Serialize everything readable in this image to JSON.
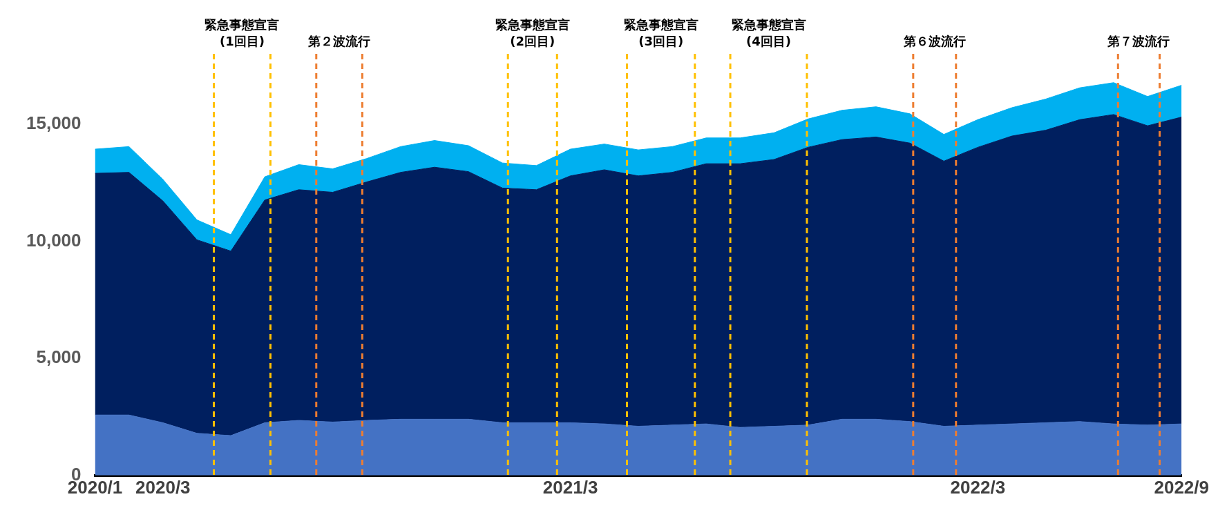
{
  "chart_data": {
    "type": "area",
    "stacked": true,
    "x": [
      "2020-01",
      "2020-02",
      "2020-03",
      "2020-04",
      "2020-05",
      "2020-06",
      "2020-07",
      "2020-08",
      "2020-09",
      "2020-10",
      "2020-11",
      "2020-12",
      "2021-01",
      "2021-02",
      "2021-03",
      "2021-04",
      "2021-05",
      "2021-06",
      "2021-07",
      "2021-08",
      "2021-09",
      "2021-10",
      "2021-11",
      "2021-12",
      "2022-01",
      "2022-02",
      "2022-03",
      "2022-04",
      "2022-05",
      "2022-06",
      "2022-07",
      "2022-08",
      "2022-09"
    ],
    "series": [
      {
        "color": "#4472c4",
        "values": [
          2580,
          2580,
          2250,
          1800,
          1700,
          2250,
          2350,
          2280,
          2350,
          2400,
          2400,
          2400,
          2250,
          2250,
          2250,
          2200,
          2100,
          2150,
          2200,
          2050,
          2100,
          2150,
          2400,
          2400,
          2300,
          2100,
          2150,
          2200,
          2250,
          2300,
          2200,
          2150,
          2200
        ]
      },
      {
        "color": "#001f5f",
        "values": [
          10320,
          10360,
          9470,
          8260,
          7880,
          9510,
          9850,
          9810,
          10180,
          10540,
          10760,
          10570,
          10020,
          9950,
          10540,
          10850,
          10690,
          10790,
          11110,
          11260,
          11390,
          11860,
          11940,
          12050,
          11890,
          11320,
          11860,
          12290,
          12490,
          12890,
          13210,
          12780,
          13100
        ]
      },
      {
        "color": "#00b0f0",
        "values": [
          1030,
          1100,
          920,
          850,
          700,
          990,
          1070,
          1000,
          1000,
          1100,
          1140,
          1110,
          1070,
          1030,
          1140,
          1100,
          1110,
          1100,
          1100,
          1100,
          1140,
          1210,
          1250,
          1290,
          1250,
          1140,
          1180,
          1210,
          1330,
          1360,
          1360,
          1250,
          1360
        ]
      }
    ],
    "xlim": [
      "2020-01",
      "2022-09"
    ],
    "xticks": [
      {
        "value": "2020-01",
        "label": "2020/1"
      },
      {
        "value": "2020-03",
        "label": "2020/3"
      },
      {
        "value": "2021-03",
        "label": "2021/3"
      },
      {
        "value": "2022-03",
        "label": "2022/3"
      },
      {
        "value": "2022-09",
        "label": "2022/9"
      }
    ],
    "ylim": [
      0,
      18000
    ],
    "yticks": [
      0,
      {
        "value": 5000,
        "label": "5,000"
      },
      {
        "value": 10000,
        "label": "10,000"
      },
      {
        "value": 15000,
        "label": "15,000"
      }
    ],
    "ref_lines": [
      {
        "axis": "x",
        "value": "2020-04-16",
        "label": "緊急事態宣言\n(1回目)",
        "color": "#ffc000",
        "line_style": "dashed"
      },
      {
        "axis": "x",
        "value": "2020-06-06",
        "color": "#ffc000",
        "line_style": "dashed"
      },
      {
        "axis": "x",
        "value": "2020-07-17",
        "label": "第２波流行",
        "color": "#ed7d31",
        "line_style": "dashed"
      },
      {
        "axis": "x",
        "value": "2020-08-28",
        "color": "#ed7d31",
        "line_style": "dashed"
      },
      {
        "axis": "x",
        "value": "2021-01-06",
        "label": "緊急事態宣言\n(2回目)",
        "color": "#ffc000",
        "line_style": "dashed"
      },
      {
        "axis": "x",
        "value": "2021-02-18",
        "color": "#ffc000",
        "line_style": "dashed"
      },
      {
        "axis": "x",
        "value": "2021-04-21",
        "label": "緊急事態宣言\n(3回目)",
        "color": "#ffc000",
        "line_style": "dashed"
      },
      {
        "axis": "x",
        "value": "2021-06-21",
        "color": "#ffc000",
        "line_style": "dashed"
      },
      {
        "axis": "x",
        "value": "2021-07-23",
        "label": "緊急事態宣言\n(4回目)",
        "color": "#ffc000",
        "line_style": "dashed"
      },
      {
        "axis": "x",
        "value": "2021-09-30",
        "color": "#ffc000",
        "line_style": "dashed"
      },
      {
        "axis": "x",
        "value": "2022-01-04",
        "label": "第６波流行",
        "color": "#ed7d31",
        "line_style": "dashed"
      },
      {
        "axis": "x",
        "value": "2022-02-11",
        "color": "#ed7d31",
        "line_style": "dashed"
      },
      {
        "axis": "x",
        "value": "2022-07-05",
        "label": "第７波流行",
        "color": "#ed7d31",
        "line_style": "dashed"
      },
      {
        "axis": "x",
        "value": "2022-08-12",
        "color": "#ed7d31",
        "line_style": "dashed"
      }
    ],
    "grid": false,
    "legend": false
  }
}
